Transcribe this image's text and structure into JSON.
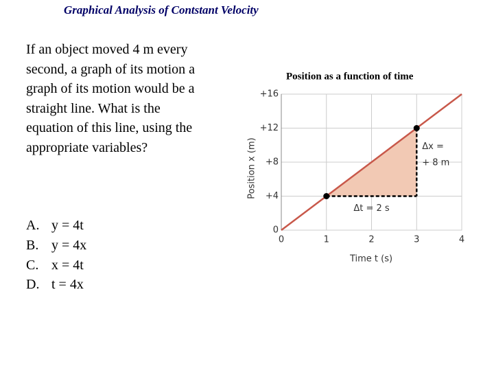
{
  "title": "Graphical Analysis of Contstant Velocity",
  "question": "If an object moved 4 m every second, a graph of its motion a graph of its motion would be a straight line. What is the equation of this line, using the appropriate variables?",
  "options": [
    {
      "letter": "A.",
      "text": "y = 4t"
    },
    {
      "letter": "B.",
      "text": "y = 4x"
    },
    {
      "letter": "C.",
      "text": "x = 4t"
    },
    {
      "letter": "D.",
      "text": "t = 4x"
    }
  ],
  "chart_data": {
    "type": "line",
    "title": "Position as a function of time",
    "x_label": "Time t (s)",
    "y_label": "Position x (m)",
    "annotations": [
      "Δx =",
      "+ 8 m",
      "Δt = 2 s"
    ],
    "xlim": [
      0,
      4
    ],
    "ylim": [
      0,
      16
    ],
    "xticks": [
      0,
      1,
      2,
      3,
      4
    ],
    "yticks": [
      0,
      {
        "value": 4,
        "label": "+4"
      },
      {
        "value": 8,
        "label": "+8"
      },
      {
        "value": 12,
        "label": "+12"
      },
      {
        "value": 16,
        "label": "+16"
      }
    ],
    "grid": true,
    "series": [
      {
        "color": "#c8584a",
        "x": [
          0,
          4
        ],
        "values": [
          0,
          16
        ]
      },
      {
        "color": "#000000",
        "x": [
          1,
          3
        ],
        "values": [
          4,
          12
        ],
        "marker": "circle"
      }
    ]
  }
}
